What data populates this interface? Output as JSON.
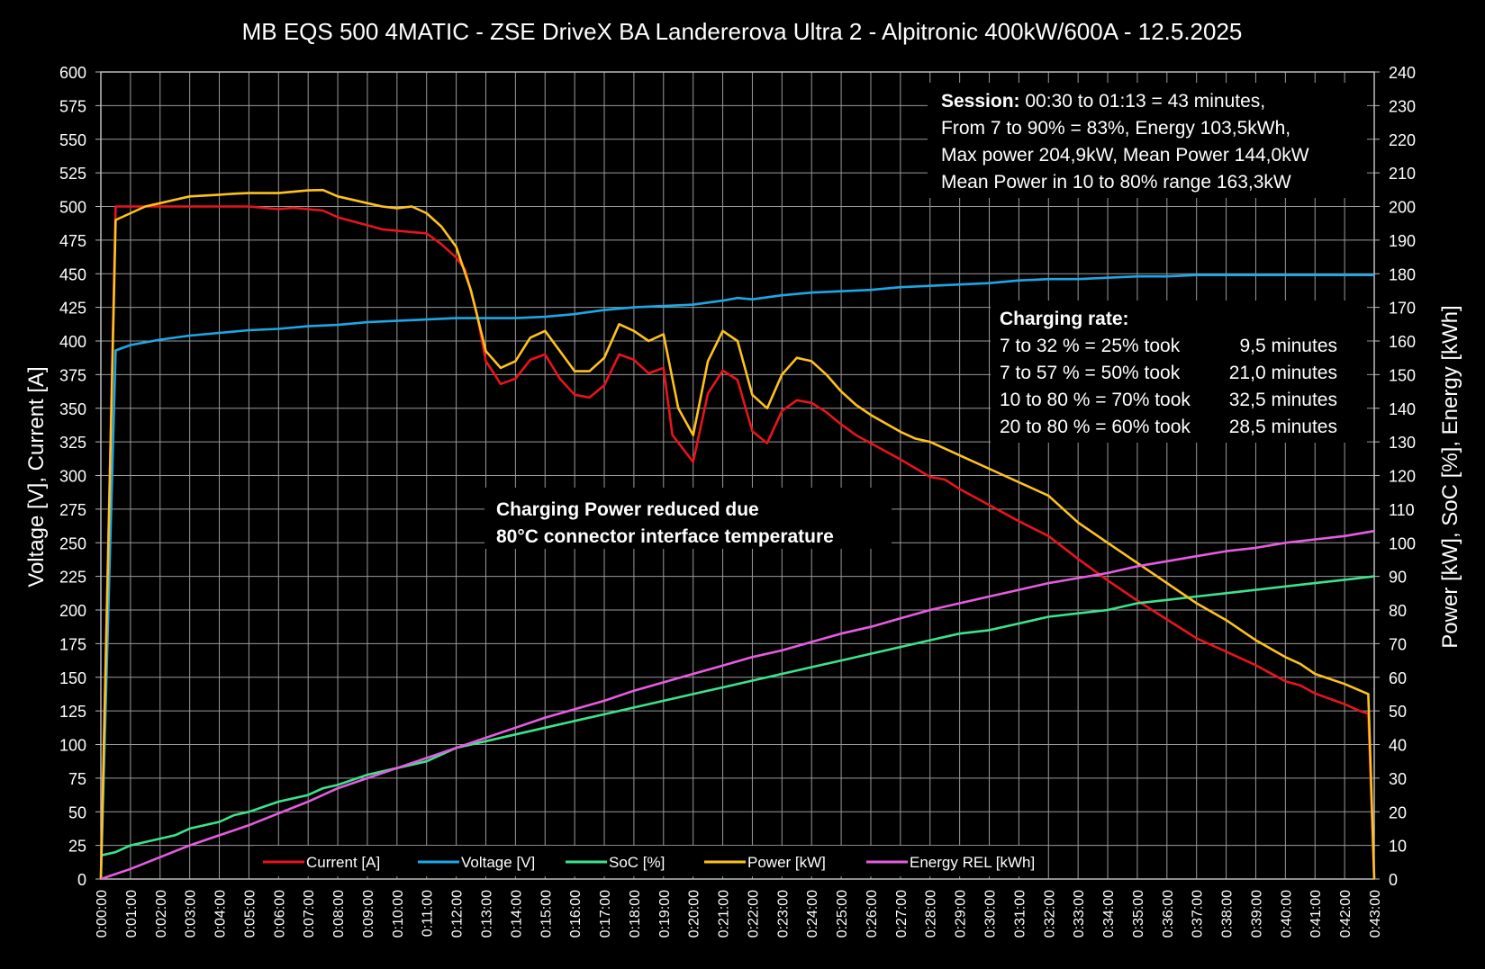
{
  "chart_data": {
    "type": "line",
    "title": "MB EQS 500 4MATIC - ZSE DriveX BA Landererova Ultra 2 - Alpitronic 400kW/600A - 12.5.2025",
    "ylabel_left": "Voltage [V], Current [A]",
    "ylabel_right": "Power [kW], SoC [%], Energy [kWh]",
    "ylim_left": [
      0,
      600
    ],
    "ylim_right": [
      0,
      240
    ],
    "yticks_left": [
      "0",
      "25",
      "50",
      "75",
      "100",
      "125",
      "150",
      "175",
      "200",
      "225",
      "250",
      "275",
      "300",
      "325",
      "350",
      "375",
      "400",
      "425",
      "450",
      "475",
      "500",
      "525",
      "550",
      "575",
      "600"
    ],
    "yticks_right": [
      "0",
      "10",
      "20",
      "30",
      "40",
      "50",
      "60",
      "70",
      "80",
      "90",
      "100",
      "110",
      "120",
      "130",
      "140",
      "150",
      "160",
      "170",
      "180",
      "190",
      "200",
      "210",
      "220",
      "230",
      "240"
    ],
    "xlim_minutes": [
      0,
      43
    ],
    "xticks": [
      "0:00:00",
      "0:01:00",
      "0:02:00",
      "0:03:00",
      "0:04:00",
      "0:05:00",
      "0:06:00",
      "0:07:00",
      "0:08:00",
      "0:09:00",
      "0:10:00",
      "0:11:00",
      "0:12:00",
      "0:13:00",
      "0:14:00",
      "0:15:00",
      "0:16:00",
      "0:17:00",
      "0:18:00",
      "0:19:00",
      "0:20:00",
      "0:21:00",
      "0:22:00",
      "0:23:00",
      "0:24:00",
      "0:25:00",
      "0:26:00",
      "0:27:00",
      "0:28:00",
      "0:29:00",
      "0:30:00",
      "0:31:00",
      "0:32:00",
      "0:33:00",
      "0:34:00",
      "0:35:00",
      "0:36:00",
      "0:37:00",
      "0:38:00",
      "0:39:00",
      "0:40:00",
      "0:41:00",
      "0:42:00",
      "0:43:00"
    ],
    "grid": true,
    "legend_position": "bottom",
    "series": [
      {
        "name": "Current [A]",
        "color": "#e8141c",
        "axis": "left",
        "points": [
          [
            0,
            0
          ],
          [
            0.5,
            500
          ],
          [
            1,
            500
          ],
          [
            2,
            500
          ],
          [
            3,
            500
          ],
          [
            4,
            500
          ],
          [
            5,
            500
          ],
          [
            6,
            498
          ],
          [
            6.5,
            499
          ],
          [
            7.5,
            497
          ],
          [
            8,
            492
          ],
          [
            9,
            486
          ],
          [
            9.5,
            483
          ],
          [
            10,
            482
          ],
          [
            10.5,
            481
          ],
          [
            11,
            480
          ],
          [
            11.5,
            472
          ],
          [
            12,
            462
          ],
          [
            12.3,
            453
          ],
          [
            12.7,
            420
          ],
          [
            13,
            385
          ],
          [
            13.3,
            375
          ],
          [
            13.5,
            368
          ],
          [
            14,
            372
          ],
          [
            14.5,
            386
          ],
          [
            15,
            390
          ],
          [
            15.5,
            372
          ],
          [
            16,
            360
          ],
          [
            16.5,
            358
          ],
          [
            17,
            367
          ],
          [
            17.5,
            390
          ],
          [
            18,
            386
          ],
          [
            18.5,
            376
          ],
          [
            19,
            380
          ],
          [
            19.3,
            330
          ],
          [
            20,
            310
          ],
          [
            20.5,
            361
          ],
          [
            21,
            378
          ],
          [
            21.5,
            371
          ],
          [
            22,
            333
          ],
          [
            22.5,
            324
          ],
          [
            23,
            348
          ],
          [
            23.5,
            356
          ],
          [
            24,
            354
          ],
          [
            24.5,
            347
          ],
          [
            25,
            338
          ],
          [
            25.5,
            330
          ],
          [
            26,
            324
          ],
          [
            27,
            312
          ],
          [
            28,
            299
          ],
          [
            28.5,
            297
          ],
          [
            29,
            290
          ],
          [
            30,
            278
          ],
          [
            31,
            266
          ],
          [
            32,
            255
          ],
          [
            33,
            238
          ],
          [
            34,
            222
          ],
          [
            35,
            207
          ],
          [
            36,
            193
          ],
          [
            37,
            179
          ],
          [
            38,
            169
          ],
          [
            39,
            159
          ],
          [
            39.5,
            153
          ],
          [
            40,
            147
          ],
          [
            40.5,
            144
          ],
          [
            41,
            138
          ],
          [
            42,
            130
          ],
          [
            42.5,
            125
          ],
          [
            42.8,
            123
          ],
          [
            43,
            0
          ]
        ]
      },
      {
        "name": "Voltage [V]",
        "color": "#1ca8e6",
        "axis": "left",
        "points": [
          [
            0,
            0
          ],
          [
            0.5,
            393
          ],
          [
            1,
            397
          ],
          [
            2,
            401
          ],
          [
            3,
            404
          ],
          [
            4,
            406
          ],
          [
            5,
            408
          ],
          [
            6,
            409
          ],
          [
            7,
            411
          ],
          [
            8,
            412
          ],
          [
            9,
            414
          ],
          [
            10,
            415
          ],
          [
            11,
            416
          ],
          [
            12,
            417
          ],
          [
            13,
            417
          ],
          [
            14,
            417
          ],
          [
            15,
            418
          ],
          [
            16,
            420
          ],
          [
            17,
            423
          ],
          [
            18,
            425
          ],
          [
            19,
            426
          ],
          [
            20,
            427
          ],
          [
            21,
            430
          ],
          [
            21.5,
            432
          ],
          [
            22,
            431
          ],
          [
            23,
            434
          ],
          [
            24,
            436
          ],
          [
            25,
            437
          ],
          [
            26,
            438
          ],
          [
            27,
            440
          ],
          [
            28,
            441
          ],
          [
            29,
            442
          ],
          [
            30,
            443
          ],
          [
            31,
            445
          ],
          [
            32,
            446
          ],
          [
            33,
            446
          ],
          [
            34,
            447
          ],
          [
            35,
            448
          ],
          [
            36,
            448
          ],
          [
            37,
            449
          ],
          [
            38,
            449
          ],
          [
            39,
            449
          ],
          [
            40,
            449
          ],
          [
            41,
            449
          ],
          [
            42,
            449
          ],
          [
            43,
            449
          ]
        ]
      },
      {
        "name": "SoC [%]",
        "color": "#3ce38c",
        "axis": "right",
        "points": [
          [
            0,
            7
          ],
          [
            0.5,
            8
          ],
          [
            1,
            10
          ],
          [
            2,
            12
          ],
          [
            2.5,
            13
          ],
          [
            3,
            15
          ],
          [
            4,
            17
          ],
          [
            4.5,
            19
          ],
          [
            5,
            20
          ],
          [
            6,
            23
          ],
          [
            7,
            25
          ],
          [
            7.5,
            27
          ],
          [
            8,
            28
          ],
          [
            9,
            31
          ],
          [
            10,
            33
          ],
          [
            11,
            35
          ],
          [
            12,
            39
          ],
          [
            13,
            41
          ],
          [
            14,
            43
          ],
          [
            15,
            45
          ],
          [
            16,
            47
          ],
          [
            17,
            49
          ],
          [
            18,
            51
          ],
          [
            19,
            53
          ],
          [
            20,
            55
          ],
          [
            21,
            57
          ],
          [
            22,
            59
          ],
          [
            23,
            61
          ],
          [
            24,
            63
          ],
          [
            25,
            65
          ],
          [
            26,
            67
          ],
          [
            27,
            69
          ],
          [
            28,
            71
          ],
          [
            29,
            73
          ],
          [
            30,
            74
          ],
          [
            31,
            76
          ],
          [
            32,
            78
          ],
          [
            33,
            79
          ],
          [
            34,
            80
          ],
          [
            35,
            82
          ],
          [
            36,
            83
          ],
          [
            37,
            84
          ],
          [
            38,
            85
          ],
          [
            39,
            86
          ],
          [
            40,
            87
          ],
          [
            41,
            88
          ],
          [
            42,
            89
          ],
          [
            43,
            90
          ]
        ]
      },
      {
        "name": "Power [kW]",
        "color": "#ffc21c",
        "axis": "right",
        "points": [
          [
            0,
            0
          ],
          [
            0.5,
            196
          ],
          [
            1,
            198
          ],
          [
            1.5,
            200
          ],
          [
            2,
            201
          ],
          [
            2.5,
            202
          ],
          [
            3,
            203
          ],
          [
            4,
            203.5
          ],
          [
            4.5,
            203.8
          ],
          [
            5,
            204
          ],
          [
            6,
            204
          ],
          [
            6.5,
            204.4
          ],
          [
            7,
            204.8
          ],
          [
            7.5,
            204.9
          ],
          [
            8,
            203
          ],
          [
            9,
            201
          ],
          [
            9.5,
            200
          ],
          [
            10,
            199.5
          ],
          [
            10.5,
            200
          ],
          [
            11,
            198
          ],
          [
            11.5,
            194
          ],
          [
            12,
            188
          ],
          [
            12.5,
            175
          ],
          [
            13,
            157
          ],
          [
            13.5,
            152
          ],
          [
            14,
            154
          ],
          [
            14.5,
            161
          ],
          [
            15,
            163
          ],
          [
            15.5,
            157
          ],
          [
            16,
            151
          ],
          [
            16.5,
            151
          ],
          [
            17,
            155
          ],
          [
            17.5,
            165
          ],
          [
            18,
            163
          ],
          [
            18.5,
            160
          ],
          [
            19,
            162
          ],
          [
            19.5,
            140
          ],
          [
            20,
            132
          ],
          [
            20.5,
            154
          ],
          [
            21,
            163
          ],
          [
            21.5,
            160
          ],
          [
            22,
            144
          ],
          [
            22.5,
            140
          ],
          [
            23,
            150
          ],
          [
            23.5,
            155
          ],
          [
            24,
            154
          ],
          [
            24.5,
            150
          ],
          [
            25,
            145
          ],
          [
            25.5,
            141
          ],
          [
            26,
            138
          ],
          [
            27,
            133
          ],
          [
            27.5,
            131
          ],
          [
            28,
            130
          ],
          [
            29,
            126
          ],
          [
            30,
            122
          ],
          [
            31,
            118
          ],
          [
            32,
            114
          ],
          [
            33,
            106
          ],
          [
            34,
            100
          ],
          [
            35,
            94
          ],
          [
            36,
            88
          ],
          [
            37,
            82
          ],
          [
            38,
            77
          ],
          [
            39,
            71
          ],
          [
            40,
            66
          ],
          [
            40.5,
            64
          ],
          [
            41,
            61
          ],
          [
            42,
            58
          ],
          [
            42.8,
            55
          ],
          [
            43,
            0
          ]
        ]
      },
      {
        "name": "Energy REL [kWh]",
        "color": "#e65ce0",
        "axis": "right",
        "points": [
          [
            0,
            0
          ],
          [
            1,
            3
          ],
          [
            2,
            6.5
          ],
          [
            3,
            10
          ],
          [
            4,
            13
          ],
          [
            5,
            16
          ],
          [
            6,
            19.5
          ],
          [
            7,
            23
          ],
          [
            8,
            27
          ],
          [
            9,
            30
          ],
          [
            10,
            33
          ],
          [
            11,
            36
          ],
          [
            12,
            39
          ],
          [
            13,
            42
          ],
          [
            14,
            45
          ],
          [
            15,
            48
          ],
          [
            16,
            50.5
          ],
          [
            17,
            53
          ],
          [
            18,
            56
          ],
          [
            19,
            58.5
          ],
          [
            20,
            61
          ],
          [
            21,
            63.5
          ],
          [
            22,
            66
          ],
          [
            23,
            68
          ],
          [
            24,
            70.5
          ],
          [
            25,
            73
          ],
          [
            26,
            75
          ],
          [
            27,
            77.5
          ],
          [
            28,
            80
          ],
          [
            29,
            82
          ],
          [
            30,
            84
          ],
          [
            31,
            86
          ],
          [
            32,
            88
          ],
          [
            33,
            89.5
          ],
          [
            34,
            91
          ],
          [
            35,
            93
          ],
          [
            36,
            94.5
          ],
          [
            37,
            96
          ],
          [
            38,
            97.5
          ],
          [
            39,
            98.5
          ],
          [
            40,
            100
          ],
          [
            41,
            101
          ],
          [
            42,
            102
          ],
          [
            43,
            103.5
          ]
        ]
      }
    ],
    "annotations": {
      "session": [
        {
          "bold": "Session:",
          "rest": "  00:30 to 01:13 = 43 minutes,"
        },
        {
          "bold": "",
          "rest": "From 7 to 90% = 83%, Energy 103,5kWh,"
        },
        {
          "bold": "",
          "rest": "Max power 204,9kW, Mean Power 144,0kW"
        },
        {
          "bold": "",
          "rest": "Mean Power in 10 to 80% range 163,3kW"
        }
      ],
      "charging_rate_title": "Charging rate:",
      "charging_rate_rows": [
        {
          "range": "  7 to 32 % = 25% took",
          "time": "  9,5 minutes"
        },
        {
          "range": "  7 to 57 % = 50% took",
          "time": "21,0 minutes"
        },
        {
          "range": "10 to 80 % = 70% took",
          "time": "32,5 minutes"
        },
        {
          "range": "20 to 80 % = 60% took",
          "time": "28,5 minutes"
        }
      ],
      "power_note": [
        "Charging Power reduced due",
        "80°C connector interface temperature"
      ]
    }
  }
}
